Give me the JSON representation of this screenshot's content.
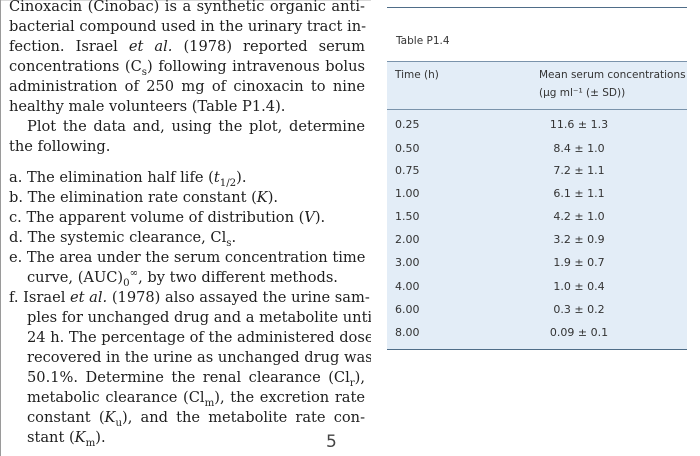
{
  "problem_text": {
    "lines": [
      "Cinoxacin (Cinobac) is a synthetic organic anti-",
      "bacterial compound used in the urinary tract in-",
      "fection. Israel et al. (1978) reported serum",
      "concentrations (Cs) following intravenous bolus",
      "administration of 250 mg of cinoxacin to nine",
      "healthy male volunteers (Table P1.4).",
      "Plot the data and, using the plot, determine",
      "the following."
    ],
    "items": [
      {
        "lines": [
          "a. The elimination half life (t1/2)."
        ]
      },
      {
        "lines": [
          "b. The elimination rate constant (K)."
        ]
      },
      {
        "lines": [
          "c. The apparent volume of distribution (V)."
        ]
      },
      {
        "lines": [
          "d. The systemic clearance, Cls."
        ]
      },
      {
        "lines": [
          "e. The area under the serum concentration time",
          "curve, (AUC)0∞, by two different methods."
        ]
      },
      {
        "lines": [
          "f. Israel et al. (1978) also assayed the urine sam-",
          "ples for unchanged drug and a metabolite until",
          "24 h. The percentage of the administered dose",
          "recovered in the urine as unchanged drug was",
          "50.1%. Determine the renal clearance (Clr),",
          "metabolic clearance (Clm), the excretion rate",
          "constant (Ku), and the metabolite rate con-",
          "stant (Km)."
        ]
      }
    ]
  },
  "page_number": "5",
  "table": {
    "caption": "Table P1.4",
    "header_time": "Time (h)",
    "header_conc_line1": "Mean serum concentrations",
    "header_conc_line2": "(μg ml⁻¹ (± SD))",
    "rows": [
      {
        "time": "0.25",
        "conc": "11.6 ± 1.3"
      },
      {
        "time": "0.50",
        "conc": "8.4 ± 1.0"
      },
      {
        "time": "0.75",
        "conc": "7.2 ± 1.1"
      },
      {
        "time": "1.00",
        "conc": "6.1 ± 1.1"
      },
      {
        "time": "1.50",
        "conc": "4.2 ± 1.0"
      },
      {
        "time": "2.00",
        "conc": "3.2 ± 0.9"
      },
      {
        "time": "3.00",
        "conc": "1.9 ± 0.7"
      },
      {
        "time": "4.00",
        "conc": "1.0 ± 0.4"
      },
      {
        "time": "6.00",
        "conc": "0.3 ± 0.2"
      },
      {
        "time": "8.00",
        "conc": "0.09 ± 0.1"
      }
    ]
  },
  "colors": {
    "table_background": "#e3edf7",
    "table_rule": "#4f6d88",
    "text": "#1e1e1e"
  }
}
